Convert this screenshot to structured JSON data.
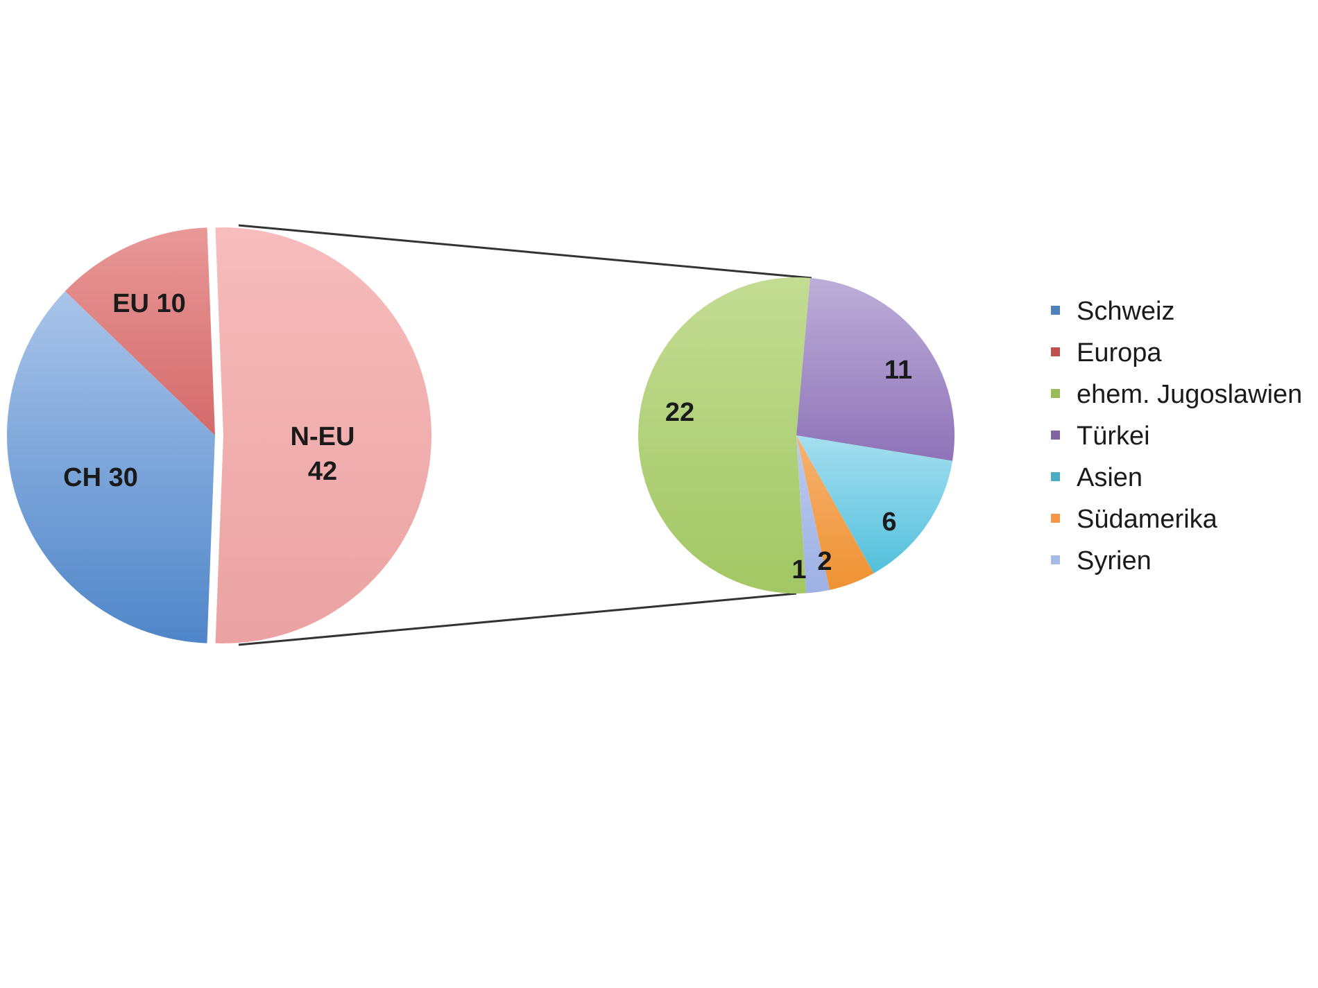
{
  "chart_data": {
    "type": "bar-of-pie",
    "main_pie": {
      "slices": [
        {
          "label": "CH 30",
          "value": 30,
          "color": "#7ca3d9"
        },
        {
          "label": "EU 10",
          "value": 10,
          "color": "#e07f7f"
        },
        {
          "label": "N-EU 42",
          "label_lines": [
            "N-EU",
            "42"
          ],
          "value": 42,
          "color": "#f0a8a8",
          "exploded": true
        }
      ]
    },
    "detail_pie": {
      "slices": [
        {
          "label": "22",
          "value": 22,
          "color": "#b3d27a",
          "series": "ehem. Jugoslawien"
        },
        {
          "label": "11",
          "value": 11,
          "color": "#a58fc9",
          "series": "Türkei"
        },
        {
          "label": "6",
          "value": 6,
          "color": "#72cde4",
          "series": "Asien"
        },
        {
          "label": "2",
          "value": 2,
          "color": "#f2a04c",
          "series": "Südamerika"
        },
        {
          "label": "1",
          "value": 1,
          "color": "#a9b9e6",
          "series": "Syrien"
        }
      ]
    },
    "legend": {
      "position": "right",
      "entries": [
        {
          "name": "Schweiz",
          "color": "#4f81bd"
        },
        {
          "name": "Europa",
          "color": "#c0504d"
        },
        {
          "name": "ehem. Jugoslawien",
          "color": "#9bbb59"
        },
        {
          "name": "Türkei",
          "color": "#8064a2"
        },
        {
          "name": "Asien",
          "color": "#4bacc6"
        },
        {
          "name": "Südamerika",
          "color": "#f79646"
        },
        {
          "name": "Syrien",
          "color": "#a7b9e6"
        }
      ]
    }
  }
}
